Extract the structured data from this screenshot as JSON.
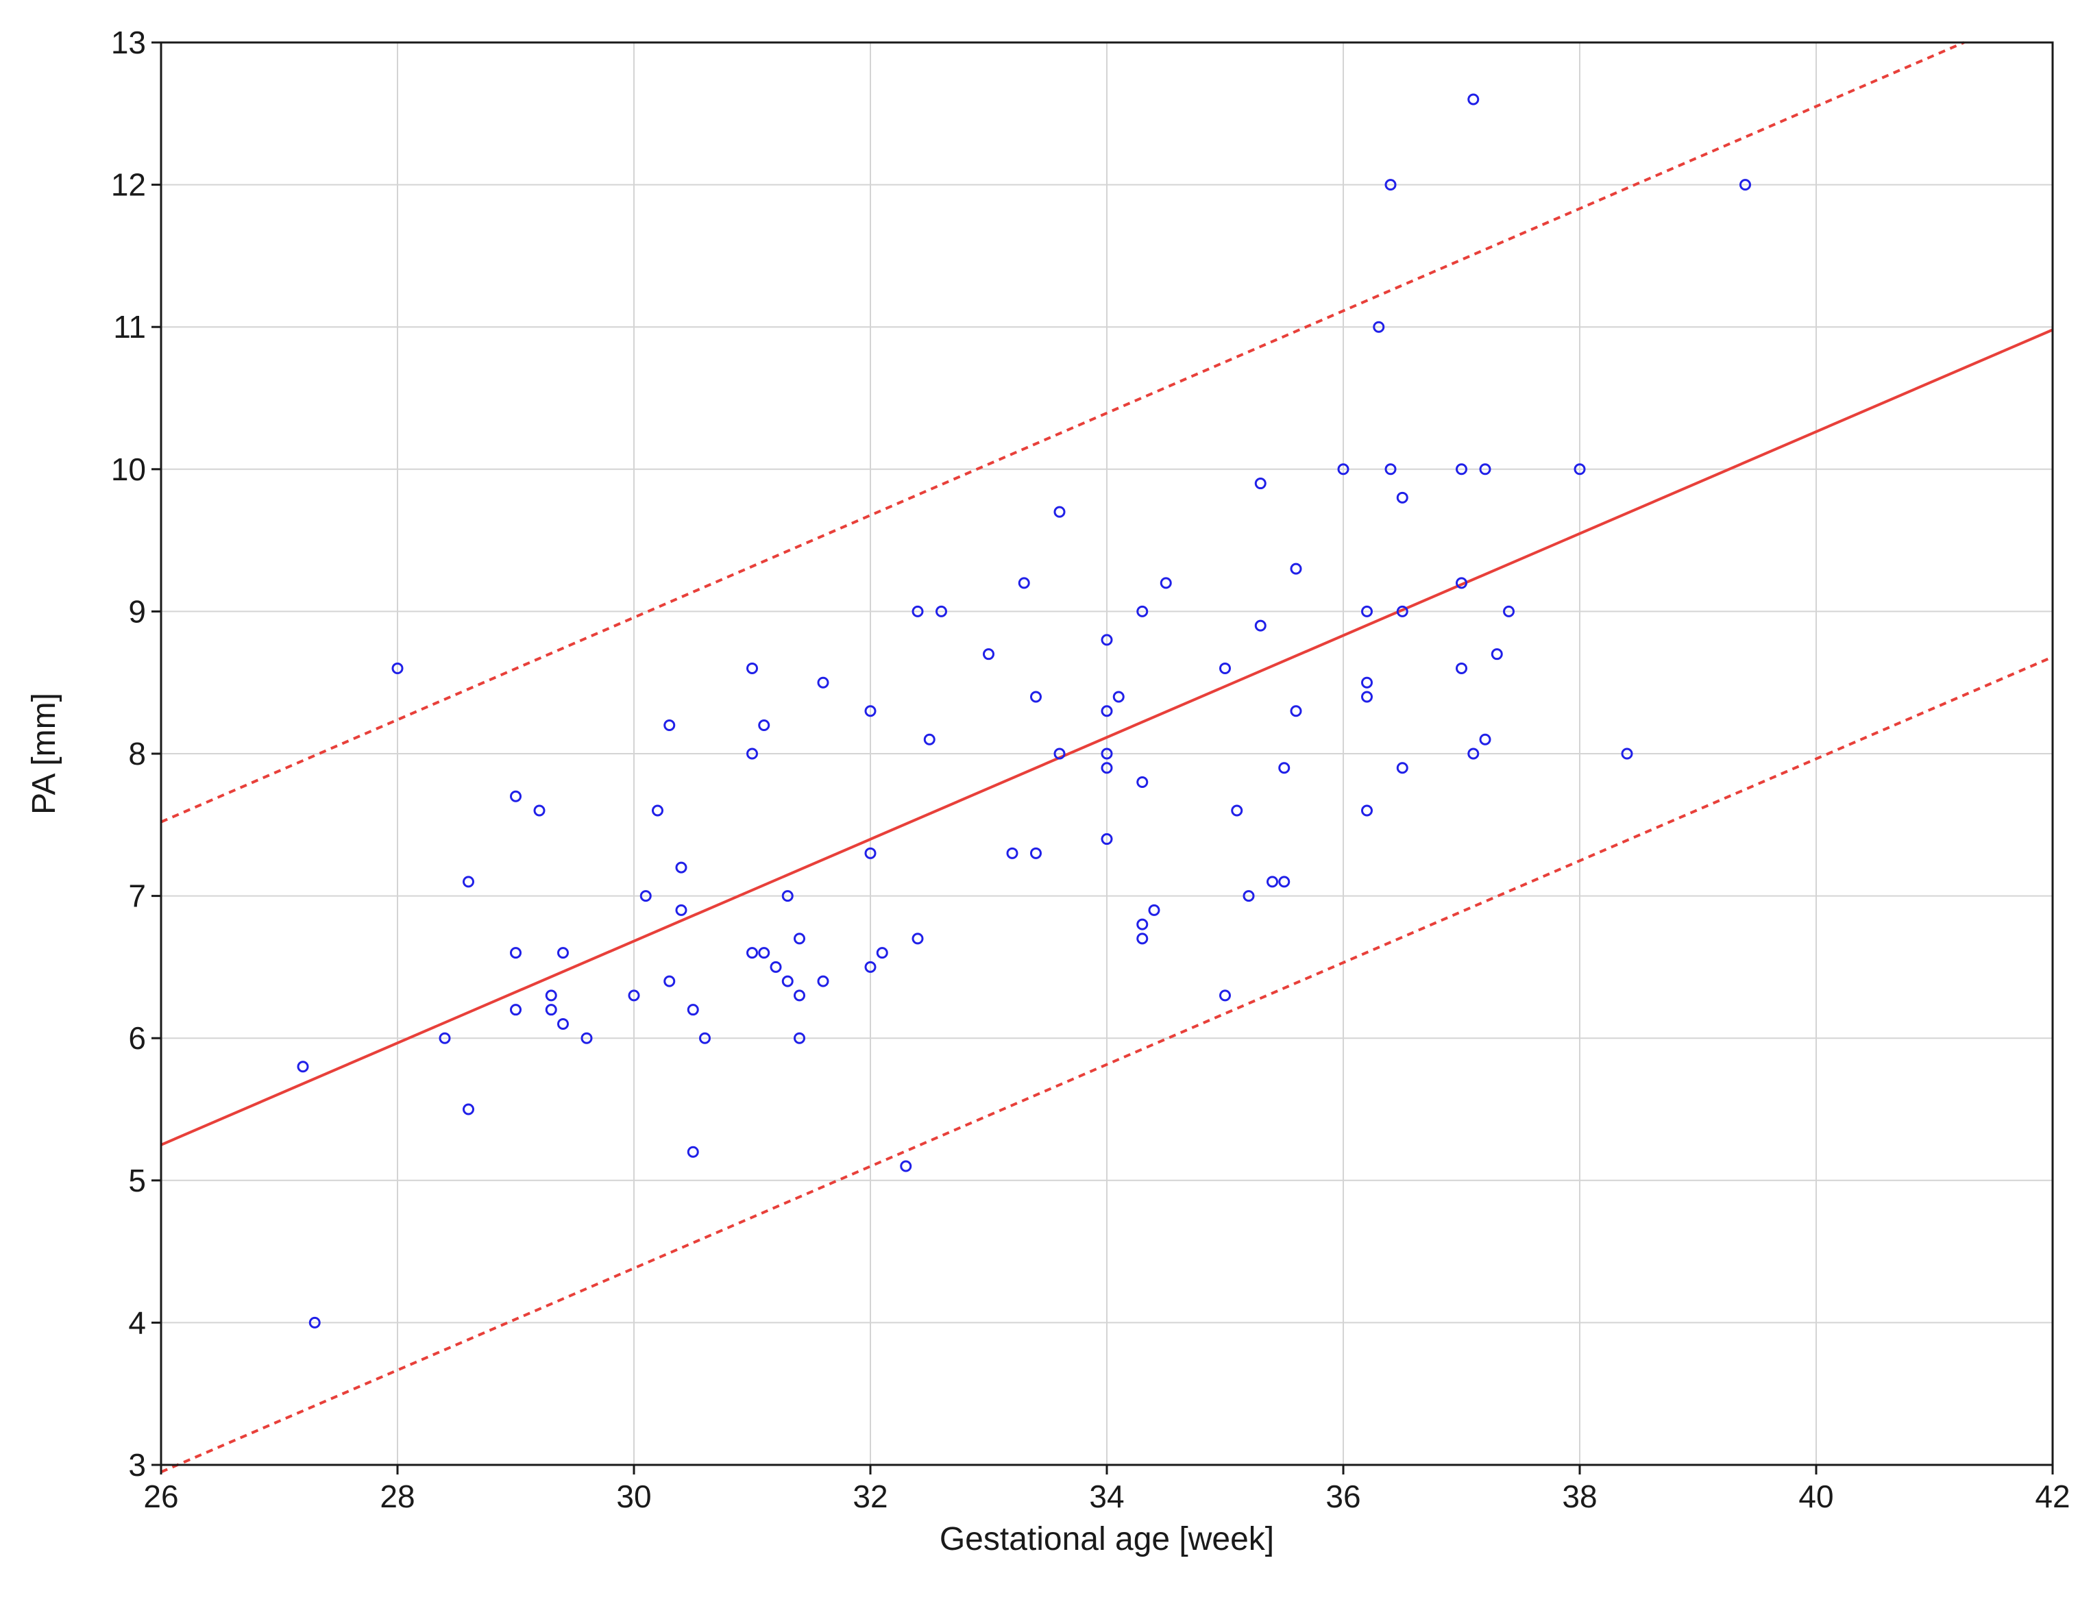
{
  "chart_data": {
    "type": "scatter",
    "title": "",
    "xlabel": "Gestational age [week]",
    "ylabel": "PA [mm]",
    "xlim": [
      26,
      42
    ],
    "ylim": [
      3,
      13
    ],
    "xticks": [
      "26",
      "28",
      "30",
      "32",
      "34",
      "36",
      "38",
      "40",
      "42"
    ],
    "yticks": [
      "3",
      "4",
      "5",
      "6",
      "7",
      "8",
      "9",
      "10",
      "11",
      "12",
      "13"
    ],
    "grid": true,
    "legend": "none",
    "colors": {
      "points": "#2020e8",
      "fit": "#e8403a",
      "band": "#e8403a",
      "grid": "#d4d4d4",
      "axis": "#1a1a1a"
    },
    "points": [
      [
        27.2,
        5.8
      ],
      [
        27.3,
        4.0
      ],
      [
        28.0,
        8.6
      ],
      [
        28.4,
        6.0
      ],
      [
        28.6,
        7.1
      ],
      [
        28.6,
        5.5
      ],
      [
        29.0,
        7.7
      ],
      [
        29.0,
        6.6
      ],
      [
        29.0,
        6.2
      ],
      [
        29.2,
        7.6
      ],
      [
        29.3,
        6.3
      ],
      [
        29.3,
        6.2
      ],
      [
        29.4,
        6.6
      ],
      [
        29.4,
        6.1
      ],
      [
        29.6,
        6.0
      ],
      [
        30.0,
        6.3
      ],
      [
        30.1,
        7.0
      ],
      [
        30.2,
        7.6
      ],
      [
        30.3,
        8.2
      ],
      [
        30.3,
        6.4
      ],
      [
        30.4,
        7.2
      ],
      [
        30.4,
        6.9
      ],
      [
        30.5,
        6.2
      ],
      [
        30.5,
        5.2
      ],
      [
        30.6,
        6.0
      ],
      [
        31.0,
        8.6
      ],
      [
        31.0,
        8.0
      ],
      [
        31.0,
        6.6
      ],
      [
        31.1,
        8.2
      ],
      [
        31.1,
        6.6
      ],
      [
        31.2,
        6.5
      ],
      [
        31.3,
        7.0
      ],
      [
        31.3,
        6.4
      ],
      [
        31.4,
        6.7
      ],
      [
        31.4,
        6.3
      ],
      [
        31.4,
        6.0
      ],
      [
        31.6,
        8.5
      ],
      [
        31.6,
        6.4
      ],
      [
        32.0,
        8.3
      ],
      [
        32.0,
        7.3
      ],
      [
        32.0,
        6.5
      ],
      [
        32.1,
        6.6
      ],
      [
        32.3,
        5.1
      ],
      [
        32.4,
        9.0
      ],
      [
        32.4,
        6.7
      ],
      [
        32.5,
        8.1
      ],
      [
        32.6,
        9.0
      ],
      [
        33.0,
        8.7
      ],
      [
        33.2,
        7.3
      ],
      [
        33.3,
        9.2
      ],
      [
        33.4,
        8.4
      ],
      [
        33.4,
        7.3
      ],
      [
        33.6,
        9.7
      ],
      [
        33.6,
        8.0
      ],
      [
        34.0,
        8.8
      ],
      [
        34.0,
        8.3
      ],
      [
        34.0,
        8.0
      ],
      [
        34.0,
        7.9
      ],
      [
        34.0,
        7.4
      ],
      [
        34.1,
        8.4
      ],
      [
        34.3,
        9.0
      ],
      [
        34.3,
        7.8
      ],
      [
        34.3,
        6.8
      ],
      [
        34.3,
        6.7
      ],
      [
        34.4,
        6.9
      ],
      [
        34.5,
        9.2
      ],
      [
        35.0,
        8.6
      ],
      [
        35.0,
        6.3
      ],
      [
        35.1,
        7.6
      ],
      [
        35.2,
        7.0
      ],
      [
        35.3,
        9.9
      ],
      [
        35.3,
        8.9
      ],
      [
        35.4,
        7.1
      ],
      [
        35.5,
        7.9
      ],
      [
        35.5,
        7.1
      ],
      [
        35.6,
        9.3
      ],
      [
        35.6,
        8.3
      ],
      [
        36.0,
        10.0
      ],
      [
        36.2,
        9.0
      ],
      [
        36.2,
        8.5
      ],
      [
        36.2,
        8.4
      ],
      [
        36.2,
        7.6
      ],
      [
        36.3,
        11.0
      ],
      [
        36.4,
        12.0
      ],
      [
        36.4,
        10.0
      ],
      [
        36.5,
        9.8
      ],
      [
        36.5,
        9.0
      ],
      [
        36.5,
        7.9
      ],
      [
        37.0,
        10.0
      ],
      [
        37.0,
        9.2
      ],
      [
        37.0,
        8.6
      ],
      [
        37.1,
        12.6
      ],
      [
        37.1,
        8.0
      ],
      [
        37.2,
        10.0
      ],
      [
        37.2,
        8.1
      ],
      [
        37.3,
        8.7
      ],
      [
        37.4,
        9.0
      ],
      [
        38.0,
        10.0
      ],
      [
        38.4,
        8.0
      ],
      [
        39.4,
        12.0
      ]
    ],
    "fit_line": [
      [
        26,
        5.25
      ],
      [
        42,
        10.98
      ]
    ],
    "upper_band": [
      [
        26,
        7.52
      ],
      [
        41.25,
        13.0
      ]
    ],
    "lower_band": [
      [
        26,
        2.95
      ],
      [
        42,
        8.68
      ]
    ]
  }
}
